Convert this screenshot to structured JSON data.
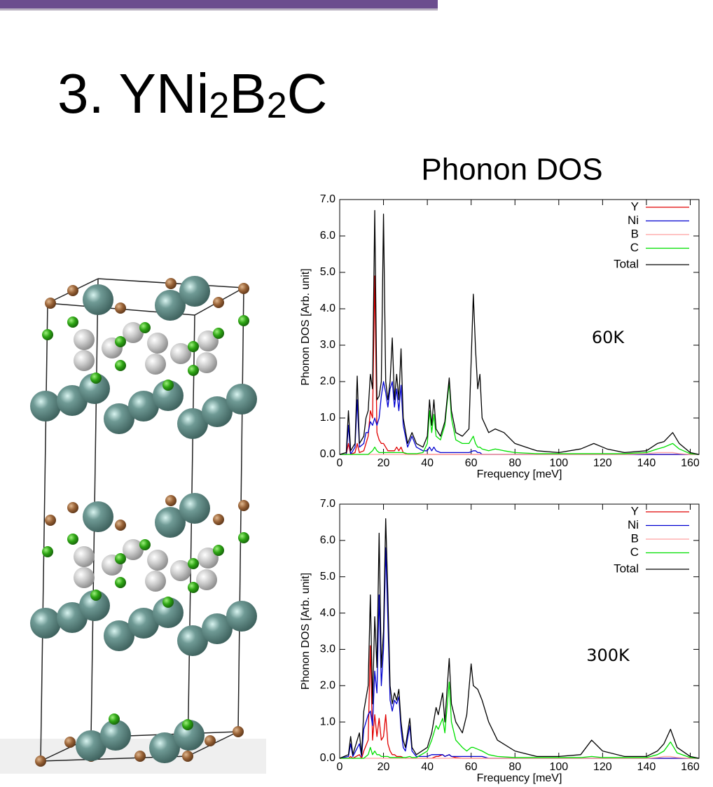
{
  "slide": {
    "title_parts": [
      "3. YNi",
      "2",
      "B",
      "2",
      "C"
    ]
  },
  "chart_data": [
    {
      "type": "line",
      "title": "Phonon DOS",
      "annotation": "60K",
      "xlabel": "Frequency [meV]",
      "ylabel": "Phonon DOS [Arb. unit]",
      "xlim": [
        0,
        164
      ],
      "ylim": [
        0,
        7
      ],
      "xticks": [
        0,
        20,
        40,
        60,
        80,
        100,
        120,
        140,
        160
      ],
      "yticks": [
        {
          "value": 0,
          "label": "0.0"
        },
        {
          "value": 1,
          "label": "1.0"
        },
        {
          "value": 2,
          "label": "2.0"
        },
        {
          "value": 3,
          "label": "3.0"
        },
        {
          "value": 4,
          "label": "4.0"
        },
        {
          "value": 5,
          "label": "5.0"
        },
        {
          "value": 6,
          "label": "6.0"
        },
        {
          "value": 7,
          "label": "7.0"
        }
      ],
      "legend": "top-right",
      "x": [
        0,
        3,
        4,
        5,
        7,
        8,
        9,
        11,
        12,
        13,
        14,
        15,
        16,
        17,
        18,
        19,
        20,
        21,
        22,
        23,
        24,
        25,
        26,
        27,
        28,
        29,
        31,
        33,
        35,
        38,
        40,
        41,
        42,
        43,
        44,
        46,
        48,
        50,
        51,
        53,
        56,
        59,
        61,
        62,
        63,
        64,
        65,
        68,
        71,
        75,
        80,
        90,
        100,
        110,
        116,
        122,
        130,
        140,
        145,
        148,
        152,
        155,
        160,
        164
      ],
      "series": [
        {
          "name": "Y",
          "color": "#e00000",
          "values": [
            0,
            0,
            0.3,
            0,
            0.05,
            0.3,
            0.05,
            0.1,
            0.3,
            0.5,
            1.2,
            1.0,
            4.9,
            0.6,
            0.4,
            0.3,
            0.3,
            0.2,
            0.1,
            0.1,
            0.1,
            0.1,
            0.2,
            0.1,
            0.2,
            0.05,
            0,
            0,
            0,
            0,
            0,
            0,
            0,
            0,
            0,
            0,
            0,
            0,
            0,
            0,
            0,
            0,
            0,
            0,
            0,
            0,
            0,
            0,
            0,
            0,
            0,
            0,
            0,
            0,
            0,
            0,
            0,
            0,
            0,
            0,
            0,
            0,
            0,
            0
          ]
        },
        {
          "name": "Ni",
          "color": "#0000d0",
          "values": [
            0,
            0,
            0.8,
            0,
            0.2,
            1.5,
            0.2,
            0.3,
            0.6,
            0.6,
            0.9,
            0.8,
            1.0,
            0.8,
            1.0,
            1.6,
            2.0,
            1.7,
            1.3,
            1.8,
            2.0,
            1.3,
            1.8,
            1.2,
            1.9,
            0.8,
            0.2,
            0.5,
            0.2,
            0.1,
            0.1,
            0.2,
            0.1,
            0.2,
            0.1,
            0.05,
            0.05,
            0.05,
            0.05,
            0.05,
            0.05,
            0.05,
            0.1,
            0.1,
            0.05,
            0.05,
            0,
            0,
            0,
            0,
            0,
            0,
            0,
            0,
            0,
            0,
            0,
            0,
            0,
            0,
            0,
            0,
            0,
            0
          ]
        },
        {
          "name": "B",
          "color": "#ffa0a0",
          "values": [
            0,
            0,
            0,
            0,
            0,
            0,
            0,
            0,
            0,
            0,
            0,
            0,
            0,
            0,
            0,
            0,
            0,
            0,
            0,
            0,
            0,
            0,
            0,
            0,
            0,
            0,
            0,
            0,
            0,
            0,
            0,
            0,
            0,
            0,
            0,
            0,
            0,
            0,
            0,
            0,
            0,
            0,
            0,
            0,
            0,
            0,
            0,
            0,
            0,
            0,
            0,
            0,
            0,
            0,
            0,
            0,
            0,
            0.02,
            0.05,
            0.05,
            0.05,
            0.02,
            0,
            0
          ]
        },
        {
          "name": "C",
          "color": "#00e000",
          "values": [
            0,
            0,
            0,
            0,
            0,
            0,
            0,
            0,
            0,
            0,
            0.05,
            0.1,
            0.2,
            0.1,
            0.05,
            0.05,
            0.05,
            0.05,
            0.05,
            0.05,
            0.05,
            0.05,
            0.05,
            0.05,
            0.05,
            0.05,
            0.02,
            0.02,
            0.02,
            0.05,
            0.3,
            1.2,
            0.6,
            1.1,
            0.5,
            0.4,
            0.8,
            2.0,
            1.0,
            0.4,
            0.3,
            0.3,
            0.5,
            0.3,
            0.2,
            0.2,
            0.15,
            0.1,
            0.15,
            0.1,
            0.05,
            0.02,
            0.02,
            0.02,
            0.02,
            0.02,
            0.02,
            0.05,
            0.15,
            0.2,
            0.3,
            0.15,
            0.02,
            0
          ]
        },
        {
          "name": "Total",
          "color": "#000000",
          "values": [
            0,
            0.05,
            1.2,
            0.1,
            0.3,
            2.15,
            0.3,
            0.5,
            1.0,
            1.2,
            2.2,
            1.8,
            6.7,
            1.5,
            1.6,
            2.0,
            6.6,
            2.0,
            1.5,
            2.0,
            3.2,
            1.5,
            2.2,
            1.5,
            2.9,
            1.0,
            0.3,
            0.6,
            0.3,
            0.2,
            0.5,
            1.5,
            0.8,
            1.5,
            0.7,
            0.5,
            0.9,
            2.1,
            1.2,
            0.6,
            0.5,
            0.7,
            4.4,
            2.9,
            1.8,
            2.2,
            1.0,
            0.6,
            0.7,
            0.6,
            0.3,
            0.1,
            0.05,
            0.15,
            0.3,
            0.15,
            0.05,
            0.1,
            0.3,
            0.35,
            0.6,
            0.3,
            0.05,
            0
          ]
        }
      ]
    },
    {
      "type": "line",
      "annotation": "300K",
      "xlabel": "Frequency [meV]",
      "ylabel": "Phonon DOS [Arb. unit]",
      "xlim": [
        0,
        164
      ],
      "ylim": [
        0,
        7
      ],
      "xticks": [
        0,
        20,
        40,
        60,
        80,
        100,
        120,
        140,
        160
      ],
      "yticks": [
        {
          "value": 0,
          "label": "0.0"
        },
        {
          "value": 1,
          "label": "1.0"
        },
        {
          "value": 2,
          "label": "2.0"
        },
        {
          "value": 3,
          "label": "3.0"
        },
        {
          "value": 4,
          "label": "4.0"
        },
        {
          "value": 5,
          "label": "5.0"
        },
        {
          "value": 6,
          "label": "6.0"
        },
        {
          "value": 7,
          "label": "7.0"
        }
      ],
      "legend": "top-right",
      "x": [
        0,
        4,
        5,
        6,
        9,
        10,
        11,
        13,
        14,
        15,
        16,
        17,
        18,
        19,
        20,
        21,
        22,
        23,
        24,
        25,
        26,
        27,
        28,
        29,
        30,
        32,
        33,
        35,
        40,
        42,
        44,
        45,
        47,
        48,
        50,
        51,
        53,
        56,
        58,
        60,
        61,
        63,
        65,
        68,
        72,
        80,
        90,
        100,
        110,
        115,
        120,
        130,
        140,
        145,
        148,
        151,
        154,
        160,
        164
      ],
      "series": [
        {
          "name": "Y",
          "color": "#e00000",
          "values": [
            0,
            0,
            0.05,
            0,
            0.1,
            0,
            0.2,
            0.5,
            3.1,
            0.5,
            1.2,
            0.6,
            1.1,
            0.5,
            0.6,
            1.2,
            0.4,
            0.2,
            0.1,
            0.1,
            0.05,
            0.05,
            0.05,
            0.02,
            0,
            0,
            0,
            0,
            0,
            0,
            0.05,
            0.05,
            0.1,
            0.05,
            0.1,
            0.05,
            0.02,
            0,
            0,
            0,
            0,
            0,
            0,
            0,
            0,
            0,
            0,
            0,
            0,
            0,
            0,
            0,
            0,
            0,
            0,
            0,
            0,
            0,
            0
          ]
        },
        {
          "name": "Ni",
          "color": "#0000d0",
          "values": [
            0,
            0.05,
            0.4,
            0.05,
            0.4,
            0.05,
            0.8,
            1.2,
            1.3,
            0.9,
            2.4,
            1.8,
            4.5,
            2.0,
            3.0,
            5.8,
            3.8,
            1.6,
            1.3,
            1.6,
            1.5,
            1.7,
            0.8,
            0.3,
            0.2,
            0.9,
            0.2,
            0.05,
            0.05,
            0.1,
            0.1,
            0.1,
            0.1,
            0.05,
            0.1,
            0.05,
            0.05,
            0.05,
            0.05,
            0.05,
            0.05,
            0.05,
            0.05,
            0,
            0,
            0,
            0,
            0,
            0,
            0,
            0,
            0,
            0,
            0,
            0,
            0,
            0,
            0,
            0
          ]
        },
        {
          "name": "B",
          "color": "#ffa0a0",
          "values": [
            0,
            0,
            0,
            0,
            0,
            0,
            0,
            0,
            0,
            0,
            0,
            0,
            0,
            0,
            0,
            0,
            0,
            0,
            0,
            0,
            0,
            0,
            0,
            0,
            0,
            0,
            0,
            0,
            0,
            0,
            0,
            0,
            0,
            0,
            0,
            0,
            0,
            0,
            0,
            0,
            0,
            0,
            0,
            0,
            0,
            0,
            0,
            0,
            0,
            0,
            0,
            0,
            0,
            0.02,
            0.05,
            0.05,
            0.02,
            0,
            0
          ]
        },
        {
          "name": "C",
          "color": "#00e000",
          "values": [
            0,
            0,
            0,
            0,
            0,
            0,
            0,
            0.1,
            0.3,
            0.1,
            0.2,
            0.1,
            0.1,
            0.05,
            0.05,
            0.05,
            0.05,
            0.02,
            0.02,
            0.02,
            0.02,
            0.02,
            0.02,
            0.02,
            0.02,
            0.05,
            0.02,
            0.02,
            0.2,
            0.5,
            0.9,
            0.8,
            1.1,
            0.7,
            2.1,
            1.0,
            0.5,
            0.3,
            0.2,
            0.3,
            0.3,
            0.25,
            0.2,
            0.1,
            0.05,
            0.02,
            0.02,
            0.02,
            0.02,
            0.05,
            0.02,
            0.02,
            0.02,
            0.1,
            0.2,
            0.45,
            0.15,
            0.02,
            0
          ]
        },
        {
          "name": "Total",
          "color": "#000000",
          "values": [
            0,
            0.1,
            0.6,
            0.1,
            0.7,
            0.1,
            1.3,
            2.0,
            4.5,
            1.5,
            3.9,
            2.5,
            6.2,
            2.5,
            3.5,
            6.6,
            4.5,
            2.0,
            1.5,
            1.8,
            1.6,
            1.9,
            1.0,
            0.5,
            0.3,
            1.1,
            0.3,
            0.1,
            0.3,
            0.7,
            1.4,
            1.2,
            1.8,
            1.0,
            2.75,
            1.5,
            1.0,
            0.7,
            1.2,
            2.6,
            2.0,
            1.9,
            1.6,
            1.0,
            0.5,
            0.2,
            0.05,
            0.05,
            0.1,
            0.5,
            0.2,
            0.05,
            0.05,
            0.2,
            0.4,
            0.8,
            0.3,
            0.05,
            0
          ]
        }
      ]
    }
  ]
}
